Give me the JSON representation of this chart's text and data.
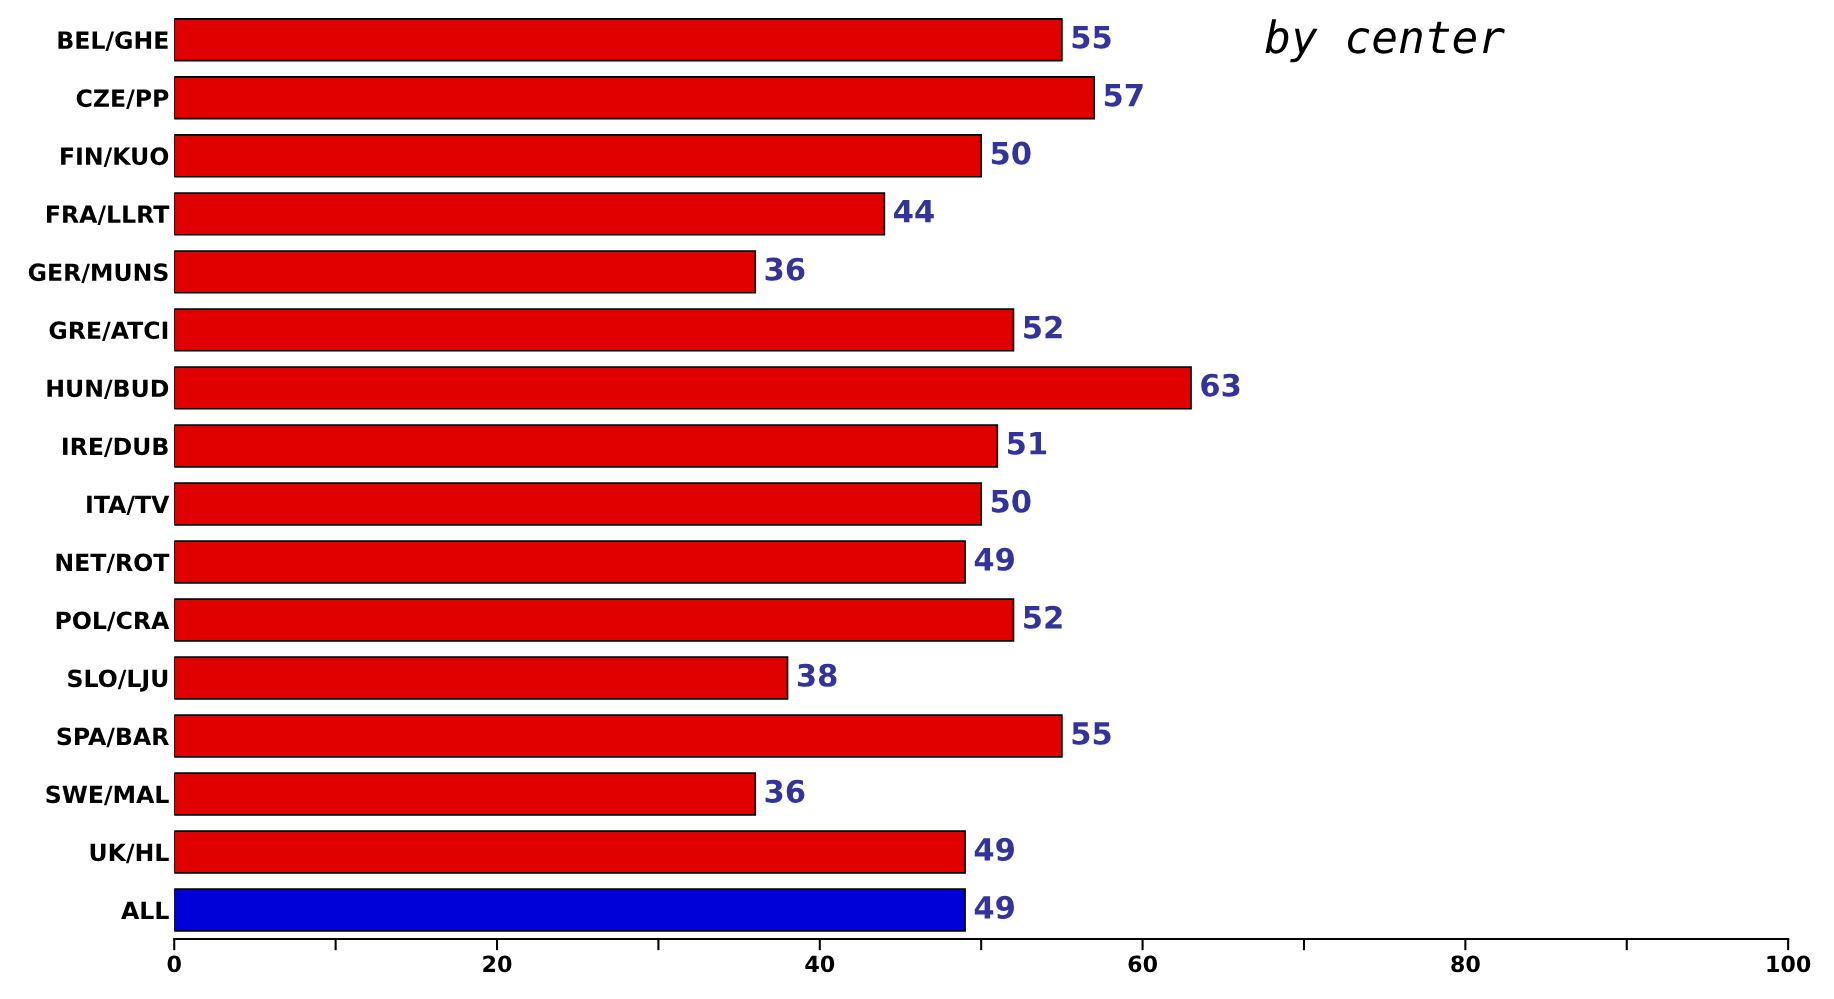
{
  "chart_data": {
    "type": "bar",
    "orientation": "horizontal",
    "title": "by center",
    "categories": [
      "BEL/GHE",
      "CZE/PP",
      "FIN/KUO",
      "FRA/LLRT",
      "GER/MUNS",
      "GRE/ATCI",
      "HUN/BUD",
      "IRE/DUB",
      "ITA/TV",
      "NET/ROT",
      "POL/CRA",
      "SLO/LJU",
      "SPA/BAR",
      "SWE/MAL",
      "UK/HL",
      "ALL"
    ],
    "values": [
      55,
      57,
      50,
      44,
      36,
      52,
      63,
      51,
      50,
      49,
      52,
      38,
      55,
      36,
      49,
      49
    ],
    "colors": [
      "#e00000",
      "#e00000",
      "#e00000",
      "#e00000",
      "#e00000",
      "#e00000",
      "#e00000",
      "#e00000",
      "#e00000",
      "#e00000",
      "#e00000",
      "#e00000",
      "#e00000",
      "#e00000",
      "#e00000",
      "#0000d8"
    ],
    "data_labels": true,
    "xlim": [
      0,
      100
    ],
    "xticks": [
      0,
      {
        "value": 10,
        "label": null
      },
      20,
      {
        "value": 30,
        "label": null
      },
      40,
      {
        "value": 50,
        "label": null
      },
      60,
      {
        "value": 70,
        "label": null
      },
      80,
      {
        "value": 90,
        "label": null
      },
      100
    ],
    "grid": false,
    "legend": false
  }
}
